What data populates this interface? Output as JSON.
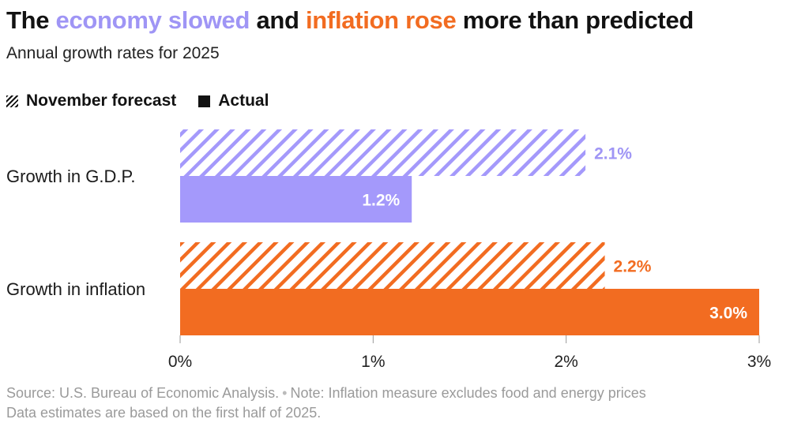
{
  "title": {
    "part1": "The ",
    "highlight_gdp": "economy slowed",
    "part2": " and ",
    "highlight_inflation": "inflation rose",
    "part3": " more than predicted"
  },
  "subtitle": "Annual growth rates for 2025",
  "legend": {
    "forecast_label": "November forecast",
    "actual_label": "Actual"
  },
  "colors": {
    "gdp": "#a499fb",
    "gdp_text": "#9f95f5",
    "inflation": "#f26c21",
    "ink": "#121212",
    "axis": "#999999"
  },
  "chart_data": {
    "type": "bar",
    "orientation": "horizontal",
    "categories": [
      "Growth in G.D.P.",
      "Growth in inflation"
    ],
    "series": [
      {
        "name": "November forecast",
        "style": "hatched",
        "values": [
          2.1,
          2.2
        ],
        "labels": [
          "2.1%",
          "2.2%"
        ]
      },
      {
        "name": "Actual",
        "style": "solid",
        "values": [
          1.2,
          3.0
        ],
        "labels": [
          "1.2%",
          "3.0%"
        ]
      }
    ],
    "xlim": [
      0,
      3
    ],
    "xticks": [
      0,
      1,
      2,
      3
    ],
    "xtick_labels": [
      "0%",
      "1%",
      "2%",
      "3%"
    ],
    "xlabel": "",
    "ylabel": ""
  },
  "source": {
    "line1": "Source: U.S. Bureau of Economic Analysis.",
    "separator": "•",
    "note": "Note: Inflation measure excludes food and energy prices",
    "line2": "Data estimates are based on the first half of 2025."
  }
}
